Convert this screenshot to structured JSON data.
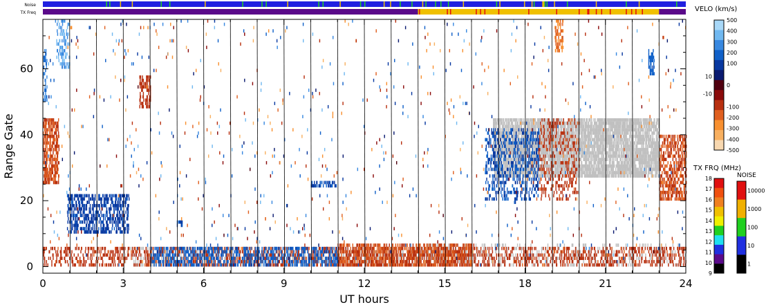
{
  "chart_data": {
    "type": "heatmap",
    "xlabel": "UT hours",
    "ylabel": "Range Gate",
    "xlim": [
      0,
      24
    ],
    "ylim": [
      -2,
      75
    ],
    "x_ticks": [
      0,
      3,
      6,
      9,
      12,
      15,
      18,
      21,
      24
    ],
    "y_ticks": [
      0,
      20,
      40,
      60
    ],
    "scan_boundaries_hours": [
      1,
      2,
      3,
      4,
      5,
      6,
      7,
      8,
      9,
      10,
      11,
      12,
      13,
      14,
      15,
      16,
      17,
      18,
      19,
      20,
      21,
      22,
      23
    ],
    "ground_scatter_color": "#c0c0c0",
    "top_strips": [
      {
        "label": "Noise",
        "segments": [
          {
            "from": 0,
            "to": 24,
            "color": "#2020e0"
          }
        ]
      },
      {
        "label": "TX Freq",
        "segments": [
          {
            "from": 0,
            "to": 14,
            "color": "#5a0a8a"
          },
          {
            "from": 14,
            "to": 23,
            "color": "#f0c000"
          },
          {
            "from": 23,
            "to": 24,
            "color": "#5a0a8a"
          }
        ]
      }
    ],
    "colorbars": [
      {
        "title": "VELO (km/s)",
        "tick_labels": [
          "500",
          "400",
          "300",
          "200",
          "100",
          "10",
          "0",
          "-10",
          "-100",
          "-200",
          "-300",
          "-400",
          "-500"
        ],
        "colors_top_to_bottom": [
          "#a8d8f8",
          "#70b8f0",
          "#3888e0",
          "#1060c8",
          "#0838a0",
          "#0a1a70",
          "#500010",
          "#8a0a0a",
          "#b83010",
          "#e06020",
          "#f89030",
          "#f8b060",
          "#f8d8b0"
        ]
      },
      {
        "title": "TX FRQ (MHz)",
        "tick_labels": [
          "18",
          "17",
          "16",
          "15",
          "14",
          "13",
          "12",
          "11",
          "10",
          "9"
        ],
        "colors_top_to_bottom": [
          "#e01010",
          "#f05010",
          "#f08020",
          "#f0c000",
          "#f0f000",
          "#20d020",
          "#20e0f0",
          "#2030e0",
          "#5a0a8a",
          "#000000"
        ]
      },
      {
        "title": "NOISE",
        "tick_labels": [
          "10000",
          "1000",
          "100",
          "10",
          "1"
        ],
        "colors_top_to_bottom": [
          "#e01010",
          "#f0b000",
          "#20d020",
          "#2030e0",
          "#000000"
        ]
      }
    ],
    "series": [
      {
        "type": "velocity_regions",
        "regions": [
          {
            "x": [
              0.0,
              0.6
            ],
            "y": [
              25,
              45
            ],
            "v": -150,
            "density": 0.7
          },
          {
            "x": [
              0.0,
              0.15
            ],
            "y": [
              50,
              66
            ],
            "v": 250,
            "density": 0.6
          },
          {
            "x": [
              0.5,
              1.0
            ],
            "y": [
              60,
              75
            ],
            "v": 350,
            "density": 0.4
          },
          {
            "x": [
              0.9,
              3.2
            ],
            "y": [
              10,
              22
            ],
            "v": 120,
            "density": 0.55
          },
          {
            "x": [
              0.0,
              24.0
            ],
            "y": [
              0,
              6
            ],
            "v": -120,
            "density": 0.35
          },
          {
            "x": [
              4.0,
              11.0
            ],
            "y": [
              0,
              6
            ],
            "v": 180,
            "density": 0.45
          },
          {
            "x": [
              11.0,
              16.0
            ],
            "y": [
              0,
              7
            ],
            "v": -150,
            "density": 0.55
          },
          {
            "x": [
              16.5,
              18.5
            ],
            "y": [
              20,
              42
            ],
            "v": 150,
            "density": 0.35
          },
          {
            "x": [
              18.5,
              20.0
            ],
            "y": [
              20,
              45
            ],
            "v": -120,
            "density": 0.25
          },
          {
            "x": [
              3.6,
              4.0
            ],
            "y": [
              48,
              58
            ],
            "v": -100,
            "density": 0.5
          },
          {
            "x": [
              22.6,
              22.8
            ],
            "y": [
              58,
              66
            ],
            "v": 200,
            "density": 0.8
          },
          {
            "x": [
              23.0,
              24.0
            ],
            "y": [
              20,
              40
            ],
            "v": -150,
            "density": 0.6
          },
          {
            "x": [
              19.1,
              19.4
            ],
            "y": [
              65,
              75
            ],
            "v": -250,
            "density": 0.5
          },
          {
            "x": [
              5.0,
              5.2
            ],
            "y": [
              12,
              14
            ],
            "v": 150,
            "density": 0.8
          },
          {
            "x": [
              10.0,
              11.0
            ],
            "y": [
              24,
              26
            ],
            "v": 150,
            "density": 0.6
          }
        ]
      },
      {
        "type": "ground_scatter_regions",
        "regions": [
          {
            "x": [
              16.8,
              23.0
            ],
            "y": [
              27,
              45
            ],
            "density": 0.6
          },
          {
            "x": [
              3.0,
              16.0
            ],
            "y": [
              0,
              6
            ],
            "density": 0.15
          },
          {
            "x": [
              14.0,
              24.0
            ],
            "y": [
              0,
              7
            ],
            "density": 0.1
          }
        ]
      }
    ]
  }
}
